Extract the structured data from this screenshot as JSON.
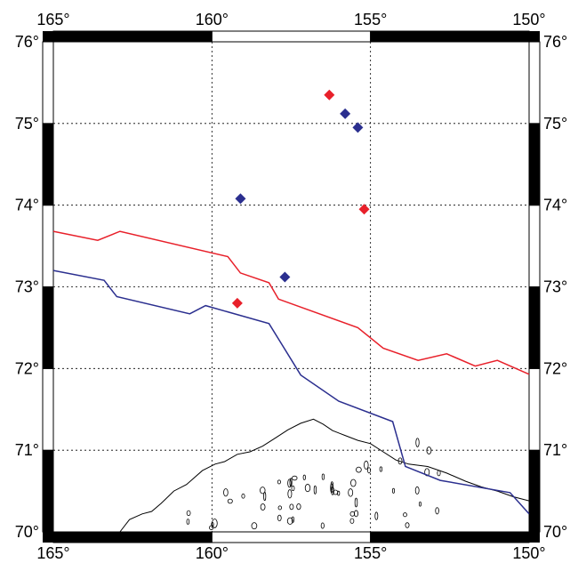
{
  "map": {
    "lon_labels": [
      "165°",
      "160°",
      "155°",
      "150°"
    ],
    "lat_labels": [
      "76°",
      "75°",
      "74°",
      "73°",
      "72°",
      "71°",
      "70°"
    ],
    "lon_range": [
      -165,
      -150
    ],
    "lat_range": [
      70,
      76
    ],
    "grid": "dashed",
    "frame": "black-white checkered border",
    "colors": {
      "red": "#e8202a",
      "blue": "#2b2f8f",
      "coast": "#000000"
    },
    "red_points": [
      {
        "lon": -156.3,
        "lat": 75.35
      },
      {
        "lon": -155.2,
        "lat": 73.95
      },
      {
        "lon": -159.2,
        "lat": 72.8
      }
    ],
    "blue_points": [
      {
        "lon": -155.8,
        "lat": 75.12
      },
      {
        "lon": -155.4,
        "lat": 74.95
      },
      {
        "lon": -159.1,
        "lat": 74.08
      },
      {
        "lon": -157.7,
        "lat": 73.12
      }
    ],
    "red_line": [
      [
        -165.0,
        73.68
      ],
      [
        -163.6,
        73.57
      ],
      [
        -162.9,
        73.68
      ],
      [
        -159.5,
        73.37
      ],
      [
        -159.1,
        73.17
      ],
      [
        -158.2,
        73.05
      ],
      [
        -157.9,
        72.85
      ],
      [
        -155.4,
        72.5
      ],
      [
        -154.6,
        72.25
      ],
      [
        -153.5,
        72.1
      ],
      [
        -152.6,
        72.18
      ],
      [
        -151.7,
        72.03
      ],
      [
        -151.0,
        72.1
      ],
      [
        -150.0,
        71.93
      ]
    ],
    "blue_line": [
      [
        -165.0,
        73.2
      ],
      [
        -163.4,
        73.08
      ],
      [
        -163.0,
        72.88
      ],
      [
        -160.7,
        72.67
      ],
      [
        -160.2,
        72.77
      ],
      [
        -158.2,
        72.55
      ],
      [
        -157.2,
        71.92
      ],
      [
        -156.0,
        71.6
      ],
      [
        -154.3,
        71.35
      ],
      [
        -153.9,
        70.8
      ],
      [
        -152.8,
        70.63
      ],
      [
        -150.6,
        70.48
      ],
      [
        -150.0,
        70.22
      ]
    ],
    "coast_main": [
      [
        -162.9,
        70.0
      ],
      [
        -162.6,
        70.15
      ],
      [
        -162.2,
        70.22
      ],
      [
        -161.9,
        70.25
      ],
      [
        -161.6,
        70.35
      ],
      [
        -161.2,
        70.5
      ],
      [
        -160.8,
        70.58
      ],
      [
        -160.3,
        70.75
      ],
      [
        -159.9,
        70.83
      ],
      [
        -159.6,
        70.86
      ],
      [
        -159.2,
        70.95
      ],
      [
        -158.8,
        70.98
      ],
      [
        -158.4,
        71.05
      ],
      [
        -158.0,
        71.15
      ],
      [
        -157.6,
        71.25
      ],
      [
        -157.2,
        71.33
      ],
      [
        -156.8,
        71.38
      ],
      [
        -156.5,
        71.32
      ],
      [
        -156.2,
        71.24
      ],
      [
        -155.8,
        71.18
      ],
      [
        -155.4,
        71.12
      ],
      [
        -155.0,
        71.08
      ],
      [
        -154.6,
        70.98
      ],
      [
        -154.2,
        70.88
      ],
      [
        -153.8,
        70.83
      ],
      [
        -153.2,
        70.8
      ],
      [
        -152.6,
        70.72
      ],
      [
        -152.0,
        70.62
      ],
      [
        -151.5,
        70.55
      ],
      [
        -151.0,
        70.5
      ],
      [
        -150.5,
        70.43
      ],
      [
        -150.0,
        70.38
      ]
    ]
  }
}
